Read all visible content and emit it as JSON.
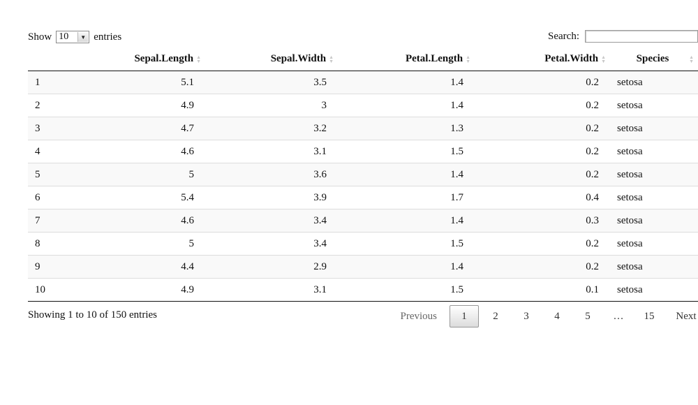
{
  "length_menu": {
    "show_label": "Show",
    "selected": "10",
    "entries_label": "entries"
  },
  "search": {
    "label": "Search:",
    "value": ""
  },
  "table": {
    "columns": [
      "",
      "Sepal.Length",
      "Sepal.Width",
      "Petal.Length",
      "Petal.Width",
      "Species"
    ],
    "rows": [
      [
        "1",
        "5.1",
        "3.5",
        "1.4",
        "0.2",
        "setosa"
      ],
      [
        "2",
        "4.9",
        "3",
        "1.4",
        "0.2",
        "setosa"
      ],
      [
        "3",
        "4.7",
        "3.2",
        "1.3",
        "0.2",
        "setosa"
      ],
      [
        "4",
        "4.6",
        "3.1",
        "1.5",
        "0.2",
        "setosa"
      ],
      [
        "5",
        "5",
        "3.6",
        "1.4",
        "0.2",
        "setosa"
      ],
      [
        "6",
        "5.4",
        "3.9",
        "1.7",
        "0.4",
        "setosa"
      ],
      [
        "7",
        "4.6",
        "3.4",
        "1.4",
        "0.3",
        "setosa"
      ],
      [
        "8",
        "5",
        "3.4",
        "1.5",
        "0.2",
        "setosa"
      ],
      [
        "9",
        "4.4",
        "2.9",
        "1.4",
        "0.2",
        "setosa"
      ],
      [
        "10",
        "4.9",
        "3.1",
        "1.5",
        "0.1",
        "setosa"
      ]
    ]
  },
  "footer": {
    "info": "Showing 1 to 10 of 150 entries",
    "previous": "Previous",
    "next": "Next",
    "pages": [
      "1",
      "2",
      "3",
      "4",
      "5",
      "…",
      "15"
    ],
    "current_page": "1"
  },
  "icons": {
    "sort": "sort-both-icon",
    "dropdown": "dropdown-arrow-icon"
  },
  "colors": {
    "header_border": "#111111",
    "row_stripe": "#f9f9f9",
    "row_divider": "#dddddd",
    "sort_icon": "#c8c8c8"
  }
}
